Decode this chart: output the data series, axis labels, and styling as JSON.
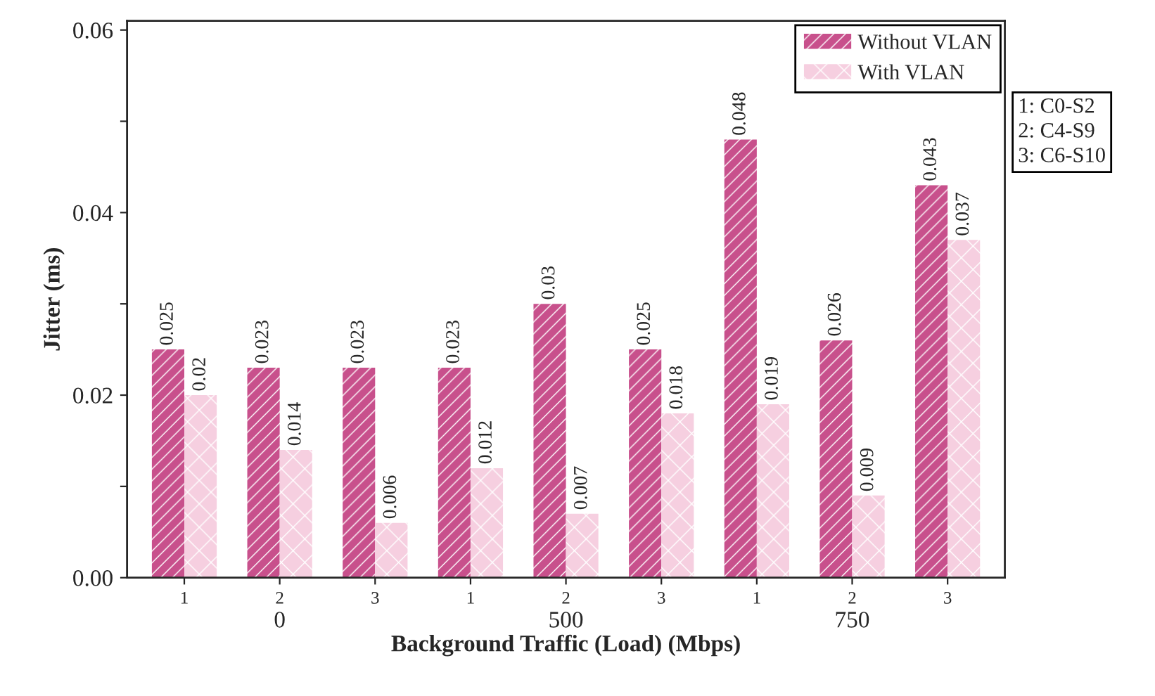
{
  "chart_data": {
    "type": "bar",
    "xlabel": "Background Traffic (Load) (Mbps)",
    "ylabel": "Jitter (ms)",
    "categories": [
      "1",
      "2",
      "3",
      "1",
      "2",
      "3",
      "1",
      "2",
      "3"
    ],
    "series": [
      {
        "name": "Without VLAN",
        "color": "#c8508c",
        "values": [
          0.025,
          0.023,
          0.023,
          0.023,
          0.03,
          0.025,
          0.048,
          0.026,
          0.043
        ]
      },
      {
        "name": "With VLAN",
        "color": "#f6cfe0",
        "values": [
          0.02,
          0.014,
          0.006,
          0.012,
          0.007,
          0.018,
          0.019,
          0.009,
          0.037
        ]
      }
    ],
    "ylim": [
      0,
      0.061
    ],
    "yticks": [
      {
        "value": 0,
        "label": "0.00"
      },
      {
        "value": 0.01,
        "label": null
      },
      {
        "value": 0.02,
        "label": "0.02"
      },
      {
        "value": 0.03,
        "label": null
      },
      {
        "value": 0.04,
        "label": "0.04"
      },
      {
        "value": 0.05,
        "label": null
      },
      {
        "value": 0.06,
        "label": "0.06"
      }
    ],
    "data_labels": true,
    "legend": "top right",
    "grid": false,
    "annotations": [
      "0",
      "500",
      "750",
      "1: C0-S2",
      "2: C4-S9",
      "3: C6-S10"
    ]
  }
}
